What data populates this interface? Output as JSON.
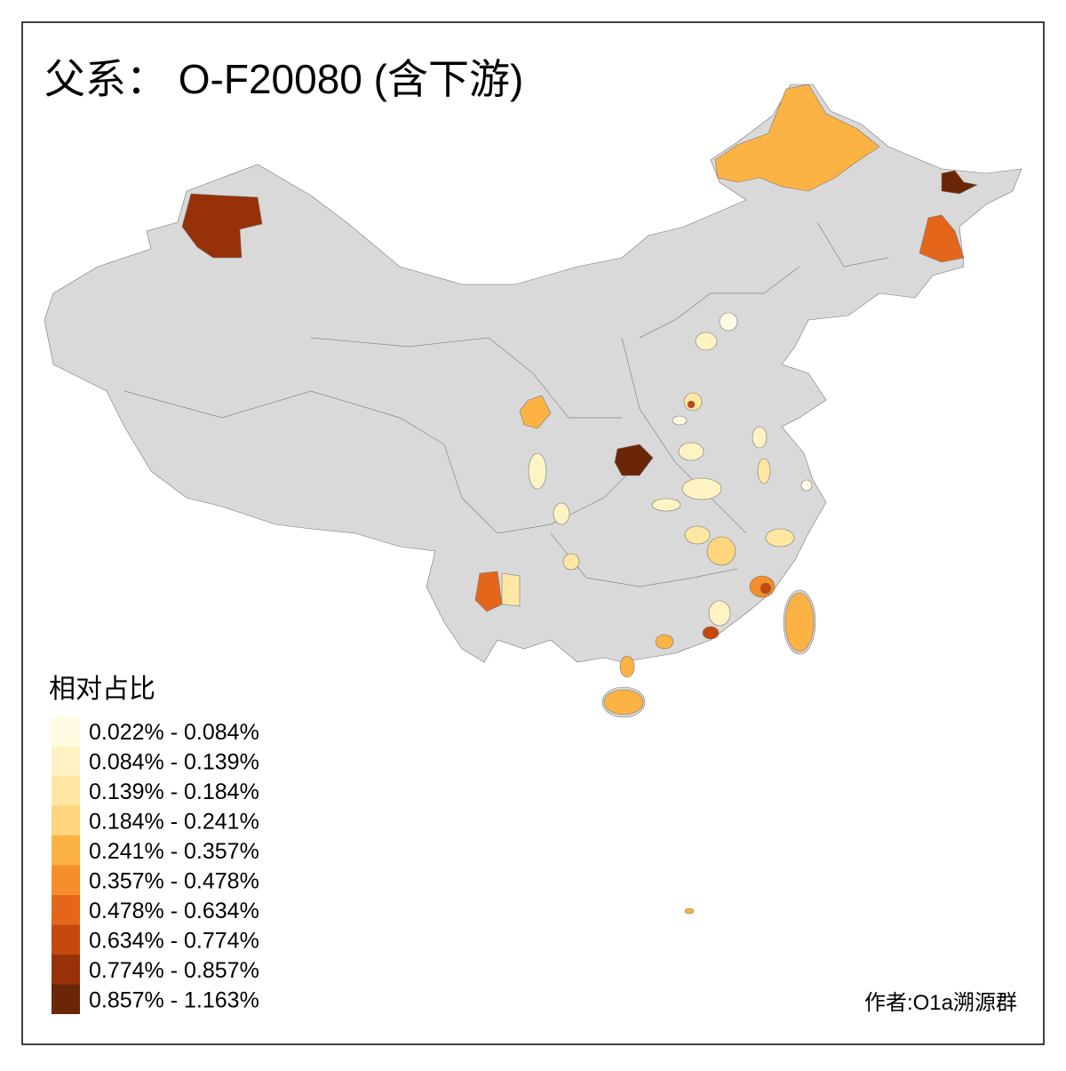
{
  "title": "父系： O-F20080 (含下游)",
  "legend": {
    "title": "相对占比",
    "items": [
      {
        "label": "0.022% - 0.084%",
        "color": "#fffce3"
      },
      {
        "label": "0.084% - 0.139%",
        "color": "#fff3c4"
      },
      {
        "label": "0.139% - 0.184%",
        "color": "#fee7a3"
      },
      {
        "label": "0.184% - 0.241%",
        "color": "#fed57c"
      },
      {
        "label": "0.241% - 0.357%",
        "color": "#fdb244"
      },
      {
        "label": "0.357% - 0.478%",
        "color": "#f68d2b"
      },
      {
        "label": "0.478% - 0.634%",
        "color": "#e3661a"
      },
      {
        "label": "0.634% - 0.774%",
        "color": "#c4490c"
      },
      {
        "label": "0.774% - 0.857%",
        "color": "#973108"
      },
      {
        "label": "0.857% - 1.163%",
        "color": "#6b2607"
      }
    ]
  },
  "credit": "作者:O1a溯源群"
}
